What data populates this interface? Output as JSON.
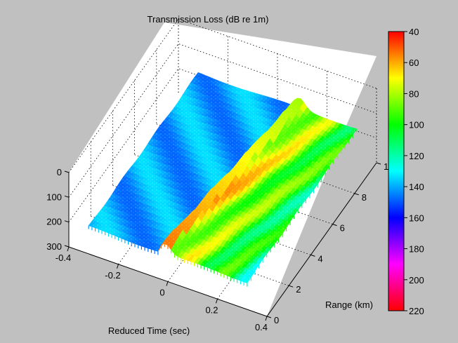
{
  "chart_data": {
    "type": "surface",
    "title": "Transmission Loss (dB re 1m)",
    "xlabel": "Reduced Time (sec)",
    "ylabel": "Range (km)",
    "zlabel": "",
    "x_ticks": [
      "-0.4",
      "-0.2",
      "0",
      "0.2",
      "0.4"
    ],
    "y_ticks": [
      "0",
      "2",
      "4",
      "6",
      "8",
      "10"
    ],
    "z_ticks": [
      "0",
      "100",
      "200",
      "300"
    ],
    "xlim": [
      -0.4,
      0.4
    ],
    "ylim": [
      0,
      10
    ],
    "zlim": [
      0,
      300
    ],
    "zdir": "reverse",
    "grid": true,
    "colorbar": {
      "ticks": [
        "40",
        "60",
        "80",
        "100",
        "120",
        "140",
        "160",
        "180",
        "200",
        "220"
      ],
      "range": [
        40,
        220
      ],
      "colormap": "hsv",
      "colors": [
        "#ff0000",
        "#ff8000",
        "#ffff00",
        "#80ff00",
        "#00ff00",
        "#00ff80",
        "#00ffff",
        "#0080ff",
        "#0000ff",
        "#8000ff",
        "#ff00ff",
        "#ff0080",
        "#ff0000"
      ]
    },
    "background_color": "#c0c0c0",
    "axes_color": "#ffffff"
  }
}
